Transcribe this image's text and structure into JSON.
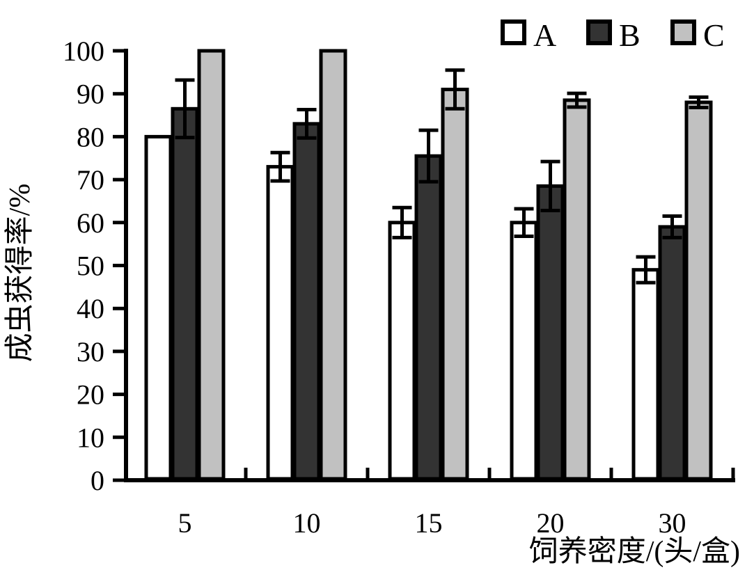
{
  "figure": {
    "background": "#ffffff",
    "ink_color": "#000000"
  },
  "chart_data": {
    "type": "bar",
    "title": "",
    "categories": [
      "5",
      "10",
      "15",
      "20",
      "30"
    ],
    "series": [
      {
        "name": "A",
        "fill": "#ffffff",
        "values": [
          80,
          73,
          60,
          60,
          49
        ],
        "errors": [
          0,
          3.3,
          3.5,
          3.2,
          3.0
        ]
      },
      {
        "name": "B",
        "fill": "#333333",
        "values": [
          86.5,
          83,
          75.5,
          68.5,
          59
        ],
        "errors": [
          6.7,
          3.3,
          6.0,
          5.7,
          2.5
        ]
      },
      {
        "name": "C",
        "fill": "#c1c1c1",
        "values": [
          100,
          100,
          91,
          88.5,
          88
        ],
        "errors": [
          0,
          0,
          4.5,
          1.6,
          1.2
        ]
      }
    ],
    "xlabel": "饲养密度/(头/盒)",
    "ylabel": "成虫获得率/%",
    "ylim": [
      0,
      100
    ],
    "ytick_step": 10,
    "yticks": [
      0,
      10,
      20,
      30,
      40,
      50,
      60,
      70,
      80,
      90,
      100
    ],
    "grid": false,
    "error_bars": true,
    "bar_outline": "#000000",
    "legend": {
      "position": "top-right",
      "entries": [
        {
          "label": "A",
          "swatch_fill": "#ffffff"
        },
        {
          "label": "B",
          "swatch_fill": "#333333"
        },
        {
          "label": "C",
          "swatch_fill": "#c1c1c1"
        }
      ]
    }
  }
}
